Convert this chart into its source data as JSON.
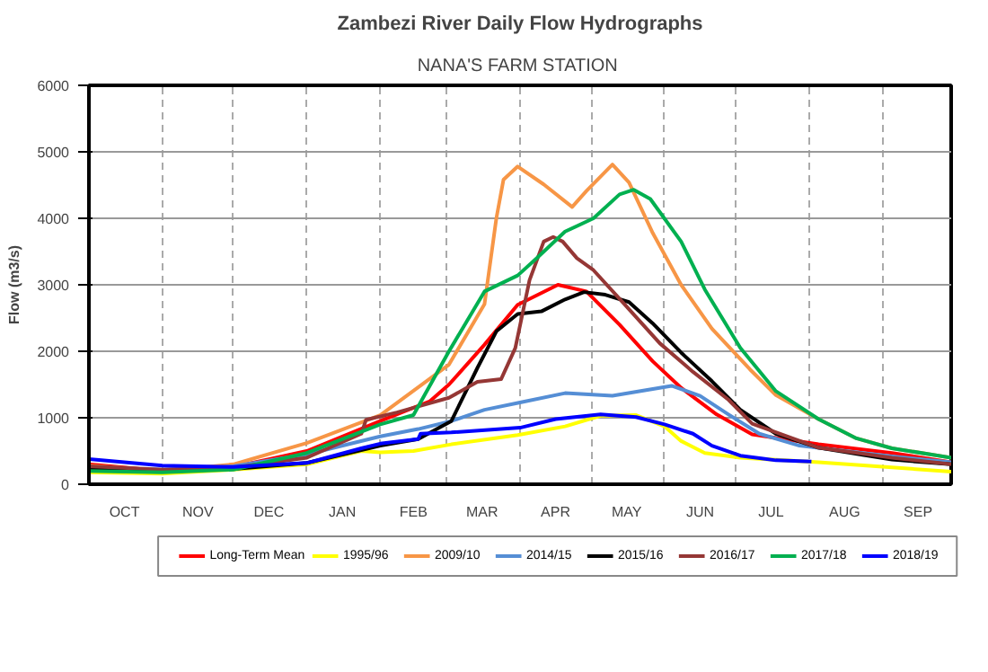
{
  "chart_data": {
    "type": "line",
    "title": "Zambezi River Daily Flow Hydrographs",
    "subtitle": "NANA'S FARM  STATION",
    "ylabel": "Flow (m3/s)",
    "xlim": [
      "2000-10-01",
      "2001-09-30"
    ],
    "ylim": [
      0,
      6000
    ],
    "yticks": [
      0,
      1000,
      2000,
      3000,
      4000,
      5000,
      6000
    ],
    "xticks": [
      {
        "value": "2000-10-01",
        "label": null
      },
      {
        "value": "2000-10-16",
        "label": "OCT"
      },
      {
        "value": "2000-11-01",
        "label": null
      },
      {
        "value": "2000-11-16",
        "label": "NOV"
      },
      {
        "value": "2000-12-01",
        "label": null
      },
      {
        "value": "2000-12-16",
        "label": "DEC"
      },
      {
        "value": "2001-01-01",
        "label": null
      },
      {
        "value": "2001-01-16",
        "label": "JAN"
      },
      {
        "value": "2001-02-01",
        "label": null
      },
      {
        "value": "2001-02-15",
        "label": "FEB"
      },
      {
        "value": "2001-03-01",
        "label": null
      },
      {
        "value": "2001-03-16",
        "label": "MAR"
      },
      {
        "value": "2001-04-01",
        "label": null
      },
      {
        "value": "2001-04-16",
        "label": "APR"
      },
      {
        "value": "2001-05-01",
        "label": null
      },
      {
        "value": "2001-05-16",
        "label": "MAY"
      },
      {
        "value": "2001-06-01",
        "label": null
      },
      {
        "value": "2001-06-16",
        "label": "JUN"
      },
      {
        "value": "2001-07-01",
        "label": null
      },
      {
        "value": "2001-07-16",
        "label": "JUL"
      },
      {
        "value": "2001-08-01",
        "label": null
      },
      {
        "value": "2001-08-16",
        "label": "AUG"
      },
      {
        "value": "2001-09-01",
        "label": null
      },
      {
        "value": "2001-09-16",
        "label": "SEP"
      },
      {
        "value": "2001-09-30",
        "label": null
      }
    ],
    "grid": true,
    "legend": "bottom",
    "line_style": "solid",
    "series": [
      {
        "name": "Long-Term Mean",
        "color": "#ff0000",
        "x": [
          "2000-10-01",
          "2000-11-01",
          "2000-12-01",
          "2001-01-01",
          "2001-02-01",
          "2001-02-22",
          "2001-03-02",
          "2001-03-17",
          "2001-03-31",
          "2001-04-17",
          "2001-04-29",
          "2001-05-13",
          "2001-05-27",
          "2001-06-08",
          "2001-06-23",
          "2001-07-08",
          "2001-08-05",
          "2001-09-05",
          "2001-09-30"
        ],
        "values": [
          300,
          200,
          260,
          500,
          950,
          1250,
          1500,
          2100,
          2700,
          3000,
          2900,
          2400,
          1850,
          1450,
          1050,
          750,
          600,
          470,
          330
        ]
      },
      {
        "name": "1995/96",
        "color": "#ffff00",
        "x": [
          "2000-10-01",
          "2000-11-01",
          "2000-12-01",
          "2001-01-01",
          "2001-01-24",
          "2001-02-01",
          "2001-02-15",
          "2001-03-03",
          "2001-03-31",
          "2001-04-20",
          "2001-05-05",
          "2001-05-20",
          "2001-06-01",
          "2001-06-08",
          "2001-06-18",
          "2001-07-03",
          "2001-08-05",
          "2001-09-30"
        ],
        "values": [
          180,
          160,
          220,
          300,
          500,
          480,
          500,
          600,
          740,
          870,
          1030,
          1040,
          870,
          650,
          470,
          400,
          330,
          190
        ]
      },
      {
        "name": "2009/10",
        "color": "#f79646",
        "x": [
          "2000-10-01",
          "2000-11-01",
          "2000-12-01",
          "2001-01-01",
          "2001-02-01",
          "2001-03-02",
          "2001-03-17",
          "2001-03-22",
          "2001-03-25",
          "2001-03-31",
          "2001-04-11",
          "2001-04-23",
          "2001-04-29",
          "2001-05-10",
          "2001-05-17",
          "2001-05-27",
          "2001-06-08",
          "2001-06-21",
          "2001-07-07",
          "2001-07-18",
          "2001-08-05",
          "2001-08-21",
          "2001-09-05",
          "2001-09-30"
        ],
        "values": [
          280,
          200,
          300,
          620,
          1040,
          1800,
          2710,
          4000,
          4580,
          4780,
          4510,
          4170,
          4410,
          4810,
          4540,
          3780,
          3000,
          2340,
          1730,
          1340,
          980,
          690,
          540,
          400
        ]
      },
      {
        "name": "2014/15",
        "color": "#558ed5",
        "x": [
          "2000-10-01",
          "2000-11-01",
          "2000-12-01",
          "2001-01-01",
          "2001-02-01",
          "2001-02-17",
          "2001-03-03",
          "2001-03-17",
          "2001-04-01",
          "2001-04-20",
          "2001-05-10",
          "2001-06-04",
          "2001-06-16",
          "2001-06-28",
          "2001-07-11",
          "2001-07-28",
          "2001-09-05",
          "2001-09-30"
        ],
        "values": [
          250,
          220,
          270,
          450,
          720,
          830,
          950,
          1120,
          1230,
          1370,
          1330,
          1480,
          1330,
          1050,
          760,
          580,
          420,
          330
        ]
      },
      {
        "name": "2015/16",
        "color": "#000000",
        "x": [
          "2000-10-01",
          "2000-11-01",
          "2000-12-01",
          "2001-01-01",
          "2001-02-01",
          "2001-02-17",
          "2001-03-03",
          "2001-03-14",
          "2001-03-22",
          "2001-03-31",
          "2001-04-10",
          "2001-04-20",
          "2001-04-28",
          "2001-05-07",
          "2001-05-17",
          "2001-05-27",
          "2001-06-08",
          "2001-06-21",
          "2001-07-03",
          "2001-07-18",
          "2001-08-05",
          "2001-09-05",
          "2001-09-30"
        ],
        "values": [
          230,
          200,
          230,
          320,
          580,
          680,
          950,
          1750,
          2300,
          2560,
          2600,
          2780,
          2890,
          2850,
          2740,
          2420,
          1980,
          1550,
          1120,
          760,
          550,
          370,
          300
        ]
      },
      {
        "name": "2016/17",
        "color": "#953735",
        "x": [
          "2000-10-01",
          "2000-11-01",
          "2000-12-01",
          "2001-01-01",
          "2001-01-24",
          "2001-01-26",
          "2001-02-08",
          "2001-02-15",
          "2001-03-02",
          "2001-03-14",
          "2001-03-24",
          "2001-03-30",
          "2001-04-05",
          "2001-04-11",
          "2001-04-15",
          "2001-04-19",
          "2001-04-25",
          "2001-05-02",
          "2001-05-15",
          "2001-05-30",
          "2001-06-13",
          "2001-06-28",
          "2001-07-08",
          "2001-08-05",
          "2001-09-05",
          "2001-09-30"
        ],
        "values": [
          270,
          220,
          250,
          400,
          760,
          970,
          1080,
          1150,
          1300,
          1540,
          1580,
          2050,
          3070,
          3650,
          3720,
          3650,
          3400,
          3220,
          2710,
          2120,
          1690,
          1270,
          910,
          550,
          400,
          300
        ]
      },
      {
        "name": "2017/18",
        "color": "#00b050",
        "x": [
          "2000-10-01",
          "2000-11-01",
          "2000-12-01",
          "2001-01-01",
          "2001-02-01",
          "2001-02-15",
          "2001-03-02",
          "2001-03-17",
          "2001-03-31",
          "2001-04-08",
          "2001-04-20",
          "2001-05-02",
          "2001-05-13",
          "2001-05-19",
          "2001-05-26",
          "2001-06-08",
          "2001-06-18",
          "2001-07-03",
          "2001-07-18",
          "2001-08-05",
          "2001-08-21",
          "2001-09-05",
          "2001-09-30"
        ],
        "values": [
          200,
          180,
          220,
          470,
          900,
          1040,
          2000,
          2900,
          3140,
          3400,
          3800,
          4000,
          4360,
          4430,
          4290,
          3650,
          2930,
          2050,
          1400,
          980,
          690,
          540,
          400
        ]
      },
      {
        "name": "2018/19",
        "color": "#0000ff",
        "x": [
          "2000-10-01",
          "2000-11-01",
          "2000-12-01",
          "2001-01-01",
          "2001-01-24",
          "2001-02-01",
          "2001-02-17",
          "2001-02-18",
          "2001-03-03",
          "2001-04-01",
          "2001-04-16",
          "2001-05-05",
          "2001-05-20",
          "2001-06-01",
          "2001-06-13",
          "2001-06-21",
          "2001-07-03",
          "2001-07-18",
          "2001-08-02"
        ],
        "values": [
          380,
          280,
          260,
          320,
          540,
          610,
          680,
          760,
          780,
          850,
          980,
          1050,
          1010,
          900,
          760,
          580,
          430,
          360,
          340
        ]
      }
    ]
  }
}
